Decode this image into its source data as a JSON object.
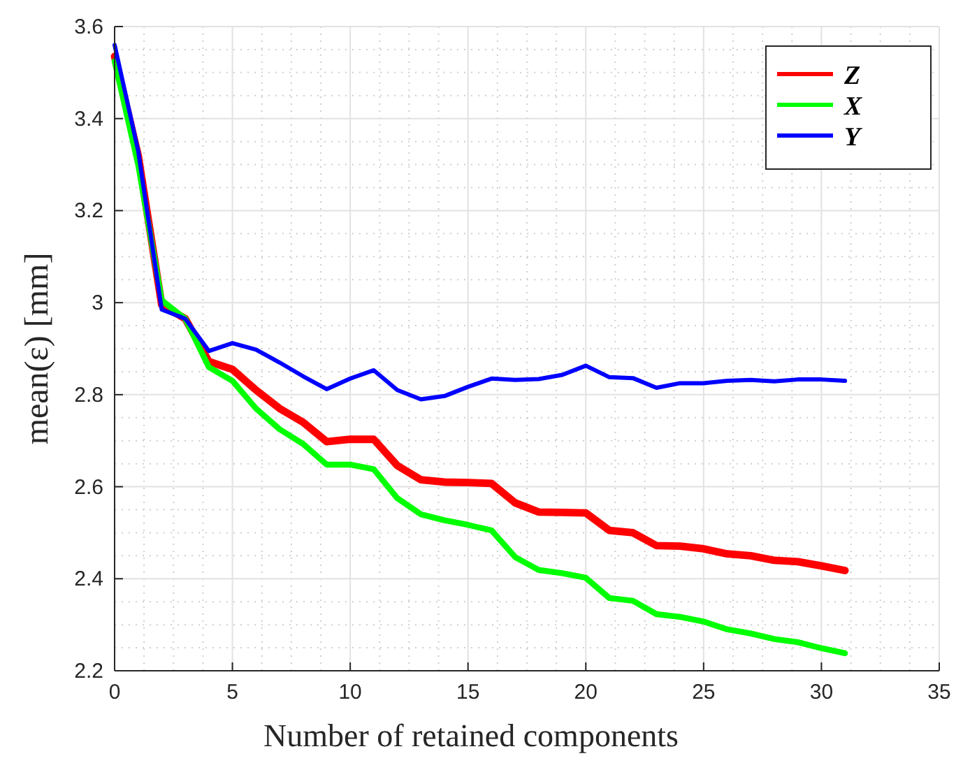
{
  "chart_data": {
    "type": "line",
    "xlabel": "Number of retained components",
    "ylabel": "mean(ε) [mm]",
    "x": [
      0,
      1,
      2,
      3,
      4,
      5,
      6,
      7,
      8,
      9,
      10,
      11,
      12,
      13,
      14,
      15,
      16,
      17,
      18,
      19,
      20,
      21,
      22,
      23,
      24,
      25,
      26,
      27,
      28,
      29,
      30,
      31
    ],
    "xlim": [
      0,
      35
    ],
    "xticks": [
      0,
      5,
      10,
      15,
      20,
      25,
      30,
      35
    ],
    "ylim": [
      2.2,
      3.6
    ],
    "yticks": [
      2.2,
      2.4,
      2.6,
      2.8,
      3,
      3.2,
      3.4,
      3.6
    ],
    "grid": true,
    "legend": "top right",
    "marker": "none",
    "line_style": "solid",
    "series": [
      {
        "name": "Z",
        "color": "#ff0000",
        "values": [
          3.535,
          3.32,
          2.995,
          2.965,
          2.872,
          2.855,
          2.81,
          2.77,
          2.74,
          2.698,
          2.703,
          2.703,
          2.646,
          2.615,
          2.61,
          2.609,
          2.607,
          2.565,
          2.545,
          2.544,
          2.543,
          2.505,
          2.5,
          2.472,
          2.471,
          2.465,
          2.454,
          2.45,
          2.44,
          2.437,
          2.428,
          2.418
        ]
      },
      {
        "name": "X",
        "color": "#00ff00",
        "values": [
          3.525,
          3.3,
          3.005,
          2.965,
          2.86,
          2.83,
          2.77,
          2.725,
          2.693,
          2.648,
          2.648,
          2.638,
          2.575,
          2.54,
          2.527,
          2.517,
          2.505,
          2.447,
          2.419,
          2.412,
          2.402,
          2.358,
          2.352,
          2.323,
          2.317,
          2.307,
          2.29,
          2.281,
          2.269,
          2.262,
          2.249,
          2.238
        ]
      },
      {
        "name": "Y",
        "color": "#0000ff",
        "values": [
          3.56,
          3.33,
          2.985,
          2.965,
          2.895,
          2.912,
          2.898,
          2.87,
          2.84,
          2.812,
          2.835,
          2.853,
          2.81,
          2.79,
          2.797,
          2.817,
          2.835,
          2.832,
          2.834,
          2.843,
          2.863,
          2.838,
          2.836,
          2.815,
          2.825,
          2.825,
          2.83,
          2.832,
          2.829,
          2.833,
          2.833,
          2.83
        ]
      }
    ]
  }
}
